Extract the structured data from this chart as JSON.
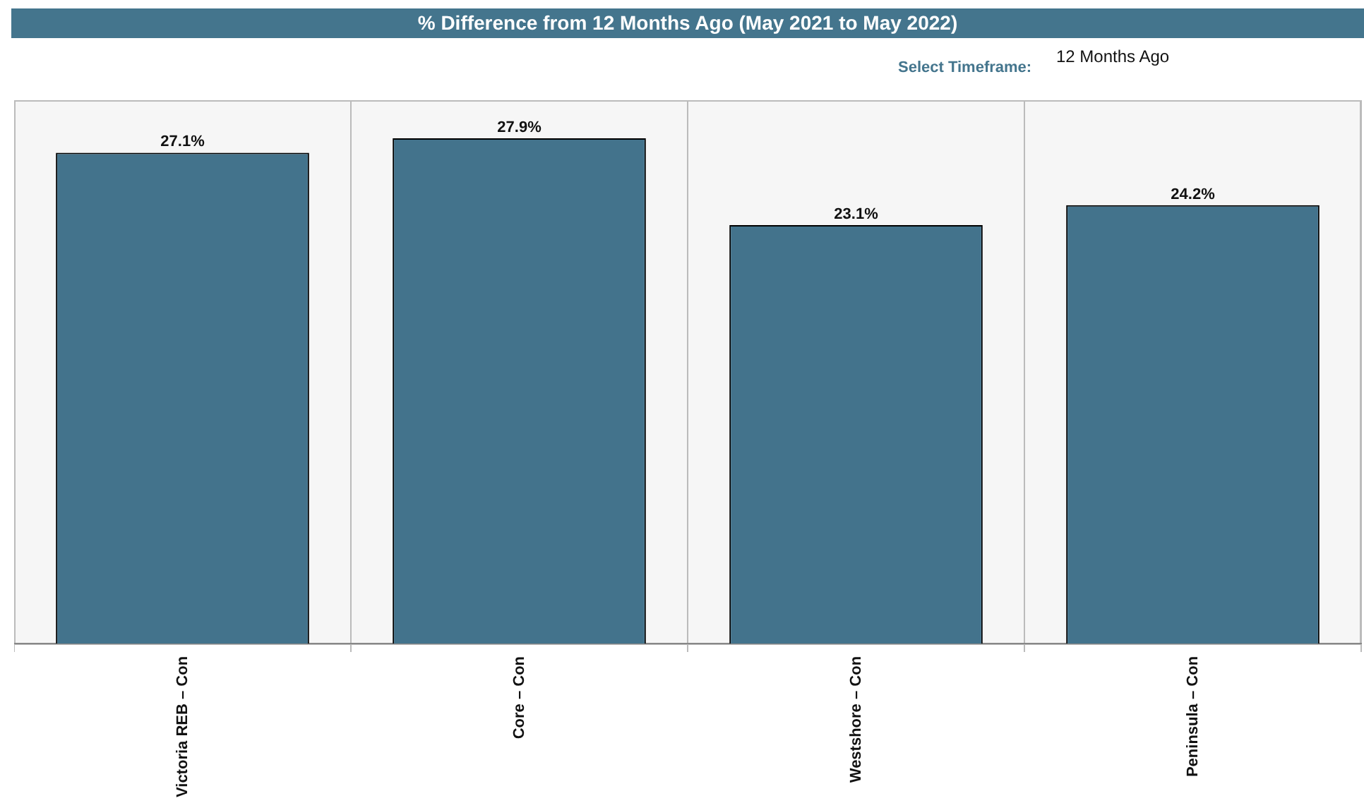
{
  "chart_data": {
    "type": "bar",
    "title": "% Difference from 12 Months Ago (May 2021 to May 2022)",
    "annotations": [
      "Select Timeframe:",
      "12 Months Ago"
    ],
    "categories": [
      "Victoria REB – Con",
      "Core – Con",
      "Westshore – Con",
      "Peninsula – Con"
    ],
    "values": [
      27.1,
      27.9,
      23.1,
      24.2
    ],
    "value_labels": [
      "27.1%",
      "27.9%",
      "23.1%",
      "24.2%"
    ],
    "color": "#43738c",
    "grid": "x",
    "legend": false
  }
}
